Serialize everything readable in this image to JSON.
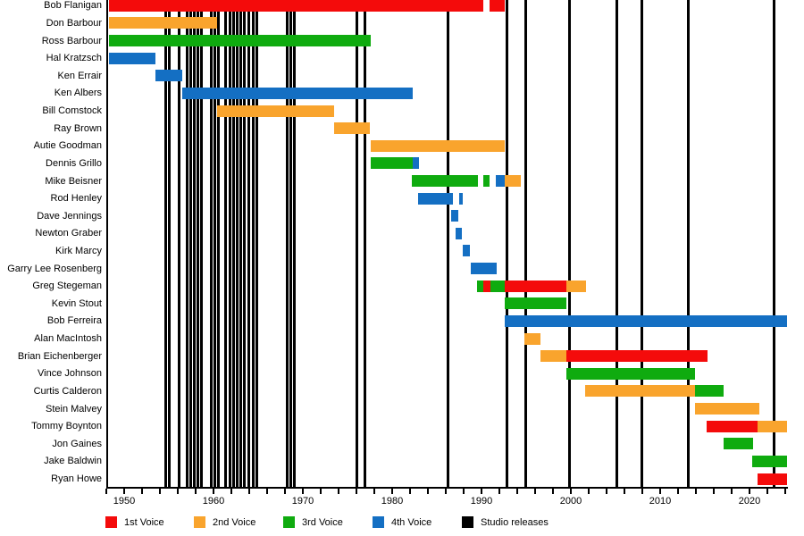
{
  "chart_data": {
    "type": "gantt-timeline",
    "title": "",
    "x_axis": {
      "min": 1948,
      "max": 2024.3,
      "minor_tick_step": 2,
      "labeled_ticks": [
        "1950",
        "1960",
        "1970",
        "1980",
        "1990",
        "2000",
        "2010",
        "2020"
      ]
    },
    "voice_colors": {
      "1st": "#f40b0b",
      "2nd": "#f9a42d",
      "3rd": "#0fab0f",
      "4th": "#146fc3",
      "release": "#000000"
    },
    "members": [
      {
        "name": "Bob Flanigan",
        "segments": [
          {
            "voice": "1st",
            "start": 1948.3,
            "end": 1990.2
          },
          {
            "voice": "1st",
            "start": 1990.9,
            "end": 1992.6
          }
        ]
      },
      {
        "name": "Don Barbour",
        "segments": [
          {
            "voice": "2nd",
            "start": 1948.3,
            "end": 1960.4
          }
        ]
      },
      {
        "name": "Ross Barbour",
        "segments": [
          {
            "voice": "3rd",
            "start": 1948.3,
            "end": 1977.6
          }
        ]
      },
      {
        "name": "Hal Kratzsch",
        "segments": [
          {
            "voice": "4th",
            "start": 1948.3,
            "end": 1953.5
          }
        ]
      },
      {
        "name": "Ken Errair",
        "segments": [
          {
            "voice": "4th",
            "start": 1953.5,
            "end": 1956.5
          }
        ]
      },
      {
        "name": "Ken Albers",
        "segments": [
          {
            "voice": "4th",
            "start": 1956.5,
            "end": 1982.3
          }
        ]
      },
      {
        "name": "Bill Comstock",
        "segments": [
          {
            "voice": "2nd",
            "start": 1960.4,
            "end": 1973.5
          }
        ]
      },
      {
        "name": "Ray Brown",
        "segments": [
          {
            "voice": "2nd",
            "start": 1973.5,
            "end": 1977.5
          }
        ]
      },
      {
        "name": "Autie Goodman",
        "segments": [
          {
            "voice": "2nd",
            "start": 1977.6,
            "end": 1992.6
          }
        ]
      },
      {
        "name": "Dennis Grillo",
        "segments": [
          {
            "voice": "3rd",
            "start": 1977.6,
            "end": 1982.3
          },
          {
            "voice": "4th",
            "start": 1982.3,
            "end": 1983.0
          }
        ]
      },
      {
        "name": "Mike Beisner",
        "segments": [
          {
            "voice": "3rd",
            "start": 1982.2,
            "end": 1989.6
          },
          {
            "voice": "3rd",
            "start": 1990.2,
            "end": 1990.9
          },
          {
            "voice": "4th",
            "start": 1991.6,
            "end": 1992.6
          },
          {
            "voice": "2nd",
            "start": 1992.6,
            "end": 1994.4
          }
        ]
      },
      {
        "name": "Rod Henley",
        "segments": [
          {
            "voice": "4th",
            "start": 1982.9,
            "end": 1986.8
          },
          {
            "voice": "4th",
            "start": 1987.5,
            "end": 1987.9
          }
        ]
      },
      {
        "name": "Dave Jennings",
        "segments": [
          {
            "voice": "4th",
            "start": 1986.6,
            "end": 1987.4
          }
        ]
      },
      {
        "name": "Newton Graber",
        "segments": [
          {
            "voice": "4th",
            "start": 1987.1,
            "end": 1987.8
          }
        ]
      },
      {
        "name": "Kirk Marcy",
        "segments": [
          {
            "voice": "4th",
            "start": 1987.9,
            "end": 1988.7
          }
        ]
      },
      {
        "name": "Garry Lee Rosenberg",
        "segments": [
          {
            "voice": "4th",
            "start": 1988.8,
            "end": 1991.7
          }
        ]
      },
      {
        "name": "Greg Stegeman",
        "segments": [
          {
            "voice": "3rd",
            "start": 1989.5,
            "end": 1990.2
          },
          {
            "voice": "1st",
            "start": 1990.2,
            "end": 1991.0
          },
          {
            "voice": "3rd",
            "start": 1991.0,
            "end": 1992.6
          },
          {
            "voice": "1st",
            "start": 1992.6,
            "end": 1999.5
          },
          {
            "voice": "2nd",
            "start": 1999.5,
            "end": 2001.7
          }
        ]
      },
      {
        "name": "Kevin Stout",
        "segments": [
          {
            "voice": "3rd",
            "start": 1992.6,
            "end": 1999.5
          }
        ]
      },
      {
        "name": "Bob Ferreira",
        "segments": [
          {
            "voice": "4th",
            "start": 1992.6,
            "end": 2024.2
          }
        ]
      },
      {
        "name": "Alan MacIntosh",
        "segments": [
          {
            "voice": "2nd",
            "start": 1994.8,
            "end": 1996.6
          }
        ]
      },
      {
        "name": "Brian Eichenberger",
        "segments": [
          {
            "voice": "2nd",
            "start": 1996.6,
            "end": 1999.5
          },
          {
            "voice": "1st",
            "start": 1999.5,
            "end": 2015.3
          }
        ]
      },
      {
        "name": "Vince Johnson",
        "segments": [
          {
            "voice": "3rd",
            "start": 1999.5,
            "end": 2013.9
          }
        ]
      },
      {
        "name": "Curtis Calderon",
        "segments": [
          {
            "voice": "2nd",
            "start": 2001.6,
            "end": 2013.9
          },
          {
            "voice": "3rd",
            "start": 2013.9,
            "end": 2017.1
          }
        ]
      },
      {
        "name": "Stein Malvey",
        "segments": [
          {
            "voice": "2nd",
            "start": 2013.9,
            "end": 2021.1
          }
        ]
      },
      {
        "name": "Tommy Boynton",
        "segments": [
          {
            "voice": "1st",
            "start": 2015.2,
            "end": 2020.9
          },
          {
            "voice": "2nd",
            "start": 2020.9,
            "end": 2024.2
          }
        ]
      },
      {
        "name": "Jon Gaines",
        "segments": [
          {
            "voice": "3rd",
            "start": 2017.1,
            "end": 2020.4
          }
        ]
      },
      {
        "name": "Jake Baldwin",
        "segments": [
          {
            "voice": "3rd",
            "start": 2020.3,
            "end": 2024.2
          }
        ]
      },
      {
        "name": "Ryan Howe",
        "segments": [
          {
            "voice": "1st",
            "start": 2020.9,
            "end": 2024.2
          }
        ]
      }
    ],
    "studio_release_years": [
      1954.6,
      1955.0,
      1956.1,
      1957.0,
      1957.4,
      1957.8,
      1958.2,
      1958.6,
      1959.7,
      1960.1,
      1960.5,
      1961.3,
      1961.8,
      1962.2,
      1962.6,
      1963.0,
      1963.4,
      1963.9,
      1964.4,
      1964.8,
      1968.2,
      1968.6,
      1969.0,
      1976.0,
      1976.9,
      1986.2,
      1992.8,
      1994.9,
      1999.8,
      2005.1,
      2007.9,
      2013.1,
      2022.7
    ],
    "legend": [
      {
        "label": "1st Voice",
        "voice": "1st"
      },
      {
        "label": "2nd Voice",
        "voice": "2nd"
      },
      {
        "label": "3rd Voice",
        "voice": "3rd"
      },
      {
        "label": "4th Voice",
        "voice": "4th"
      },
      {
        "label": "Studio releases",
        "voice": "release"
      }
    ]
  }
}
